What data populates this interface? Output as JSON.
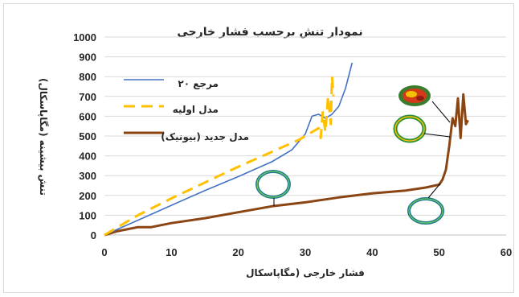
{
  "chart_data": {
    "type": "line",
    "title": "نمودار تنش برحسب فشار خارجی",
    "xlabel": "فشار خارجی (مگاپاسکال",
    "ylabel": "تنش بیشینه (مگاپاسکال)",
    "xlim": [
      0,
      60
    ],
    "ylim": [
      0,
      1000
    ],
    "xticks": [
      "0",
      "10",
      "20",
      "30",
      "40",
      "50",
      "60"
    ],
    "yticks": [
      "0",
      "100",
      "200",
      "300",
      "400",
      "500",
      "600",
      "700",
      "800",
      "900",
      "1000"
    ],
    "grid": "horizontal",
    "legend": "top-left",
    "series": [
      {
        "name": "مرجع ۲۰",
        "color": "#4472c4",
        "dash": "solid",
        "x": [
          0,
          5,
          10,
          15,
          20,
          25,
          28,
          30,
          31,
          32,
          33,
          34,
          35,
          36,
          37
        ],
        "y": [
          0,
          75,
          150,
          225,
          295,
          370,
          430,
          510,
          600,
          610,
          590,
          610,
          650,
          740,
          870
        ]
      },
      {
        "name": "مدل اولیه",
        "color": "#ffc000",
        "dash": "dashed",
        "x": [
          0,
          5,
          10,
          15,
          20,
          25,
          29,
          31,
          32,
          32.3,
          32.6,
          33,
          33.4,
          33.8,
          34,
          34.2
        ],
        "y": [
          0,
          100,
          185,
          265,
          345,
          420,
          480,
          520,
          540,
          490,
          620,
          520,
          700,
          560,
          800,
          700
        ]
      },
      {
        "name": "مدل جدید (بیونیک)",
        "color": "#8b4513",
        "dash": "solid",
        "x": [
          0,
          2,
          5,
          7,
          10,
          15,
          20,
          25,
          30,
          35,
          40,
          45,
          48,
          50,
          50.5,
          51,
          51.5,
          52,
          52.4,
          52.8,
          53.2,
          53.6,
          54,
          54.3
        ],
        "y": [
          0,
          20,
          40,
          40,
          60,
          85,
          115,
          145,
          165,
          190,
          210,
          225,
          240,
          255,
          280,
          330,
          450,
          590,
          550,
          690,
          490,
          710,
          560,
          580
        ]
      }
    ]
  }
}
